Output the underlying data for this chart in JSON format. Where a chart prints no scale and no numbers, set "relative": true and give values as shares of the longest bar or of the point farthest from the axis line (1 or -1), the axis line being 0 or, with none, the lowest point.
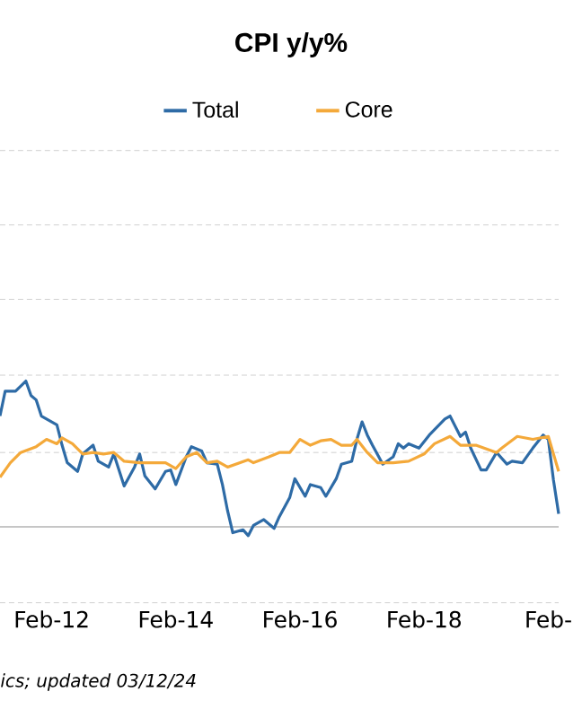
{
  "chart_data": {
    "type": "line",
    "title": "CPI y/y%",
    "relative": true,
    "legend": "top",
    "xlim": [
      "2011-04",
      "2020-04"
    ],
    "xticks": [
      {
        "value": "2012-02",
        "label": "Feb-12"
      },
      {
        "value": "2014-02",
        "label": "Feb-14"
      },
      {
        "value": "2016-02",
        "label": "Feb-16"
      },
      {
        "value": "2018-02",
        "label": "Feb-18"
      },
      {
        "value": "2020-02",
        "label": "Feb-"
      }
    ],
    "series": [
      {
        "name": "Total",
        "color": "#2e6ba6",
        "x": [
          "2011-04",
          "2011-05",
          "2011-07",
          "2011-09",
          "2011-10",
          "2011-11",
          "2011-12",
          "2012-01",
          "2012-03",
          "2012-04",
          "2012-05",
          "2012-07",
          "2012-08",
          "2012-10",
          "2012-11",
          "2013-01",
          "2013-02",
          "2013-04",
          "2013-06",
          "2013-07",
          "2013-08",
          "2013-10",
          "2013-12",
          "2014-01",
          "2014-02",
          "2014-04",
          "2014-05",
          "2014-07",
          "2014-08",
          "2014-10",
          "2014-11",
          "2014-12",
          "2015-01",
          "2015-03",
          "2015-04",
          "2015-05",
          "2015-07",
          "2015-09",
          "2015-10",
          "2015-12",
          "2016-01",
          "2016-03",
          "2016-04",
          "2016-06",
          "2016-07",
          "2016-09",
          "2016-10",
          "2016-12",
          "2017-01",
          "2017-02",
          "2017-03",
          "2017-04",
          "2017-06",
          "2017-08",
          "2017-09",
          "2017-10",
          "2017-11",
          "2018-01",
          "2018-03",
          "2018-06",
          "2018-07",
          "2018-09",
          "2018-10",
          "2018-11",
          "2019-01",
          "2019-02",
          "2019-04",
          "2019-06",
          "2019-07",
          "2019-09",
          "2019-11",
          "2020-01",
          "2020-02",
          "2020-03",
          "2020-04"
        ],
        "values": [
          0.76,
          0.93,
          0.93,
          1.0,
          0.9,
          0.87,
          0.76,
          0.74,
          0.7,
          0.56,
          0.44,
          0.38,
          0.5,
          0.56,
          0.45,
          0.41,
          0.5,
          0.28,
          0.41,
          0.5,
          0.35,
          0.26,
          0.38,
          0.39,
          0.29,
          0.48,
          0.55,
          0.52,
          0.44,
          0.43,
          0.29,
          0.11,
          -0.04,
          -0.02,
          -0.06,
          0.01,
          0.05,
          -0.01,
          0.07,
          0.2,
          0.33,
          0.21,
          0.29,
          0.27,
          0.21,
          0.33,
          0.43,
          0.45,
          0.6,
          0.72,
          0.63,
          0.56,
          0.43,
          0.48,
          0.57,
          0.54,
          0.57,
          0.54,
          0.63,
          0.74,
          0.76,
          0.62,
          0.65,
          0.54,
          0.39,
          0.39,
          0.51,
          0.43,
          0.45,
          0.44,
          0.54,
          0.63,
          0.6,
          0.32,
          0.09
        ]
      },
      {
        "name": "Core",
        "color": "#f4a93a",
        "x": [
          "2011-04",
          "2011-06",
          "2011-08",
          "2011-11",
          "2012-01",
          "2012-03",
          "2012-04",
          "2012-06",
          "2012-08",
          "2012-10",
          "2012-12",
          "2013-02",
          "2013-04",
          "2013-07",
          "2013-09",
          "2013-12",
          "2014-02",
          "2014-04",
          "2014-06",
          "2014-08",
          "2014-10",
          "2014-12",
          "2015-04",
          "2015-05",
          "2015-08",
          "2015-10",
          "2015-12",
          "2016-02",
          "2016-04",
          "2016-06",
          "2016-08",
          "2016-10",
          "2016-12",
          "2017-01",
          "2017-03",
          "2017-05",
          "2017-08",
          "2017-11",
          "2018-02",
          "2018-04",
          "2018-07",
          "2018-09",
          "2018-12",
          "2019-04",
          "2019-05",
          "2019-08",
          "2019-11",
          "2020-02",
          "2020-04"
        ],
        "values": [
          0.34,
          0.44,
          0.51,
          0.55,
          0.6,
          0.57,
          0.61,
          0.57,
          0.5,
          0.51,
          0.5,
          0.51,
          0.45,
          0.44,
          0.44,
          0.44,
          0.4,
          0.48,
          0.51,
          0.44,
          0.45,
          0.41,
          0.46,
          0.44,
          0.48,
          0.51,
          0.51,
          0.6,
          0.56,
          0.59,
          0.6,
          0.56,
          0.56,
          0.6,
          0.51,
          0.44,
          0.44,
          0.45,
          0.5,
          0.57,
          0.62,
          0.56,
          0.56,
          0.51,
          0.54,
          0.62,
          0.6,
          0.62,
          0.38
        ]
      }
    ],
    "ref_lines": [
      {
        "axis": "y",
        "value": 0,
        "color": "#c6c6c6"
      },
      {
        "axis": "y",
        "value": -0.52,
        "color": "#d0d0d0",
        "line_style": "dashed"
      },
      {
        "axis": "y",
        "value": 0.51,
        "color": "#d0d0d0",
        "line_style": "dashed"
      },
      {
        "axis": "y",
        "value": 1.04,
        "color": "#d0d0d0",
        "line_style": "dashed"
      },
      {
        "axis": "y",
        "value": 1.56,
        "color": "#d0d0d0",
        "line_style": "dashed"
      },
      {
        "axis": "y",
        "value": 2.07,
        "color": "#d0d0d0",
        "line_style": "dashed"
      },
      {
        "axis": "y",
        "value": 2.58,
        "color": "#d0d0d0",
        "line_style": "dashed"
      }
    ],
    "annotations": [
      "ics; updated 03/12/24"
    ]
  }
}
